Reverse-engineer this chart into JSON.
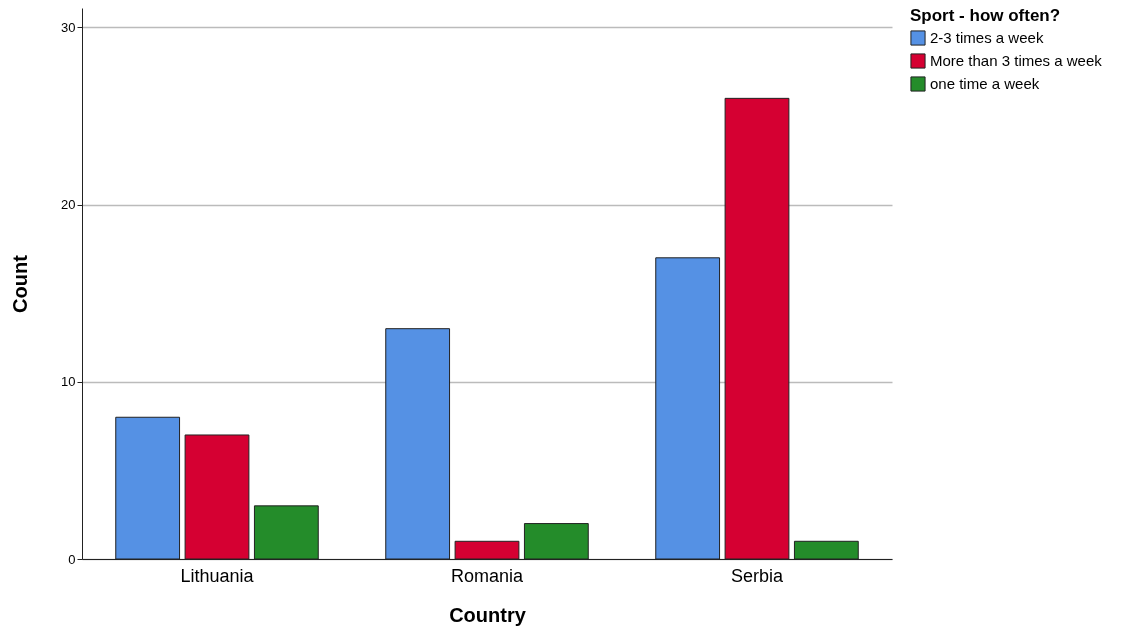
{
  "chart_data": {
    "type": "bar",
    "xlabel": "Country",
    "ylabel": "Count",
    "legend_title": "Sport - how often?",
    "categories": [
      "Lithuania",
      "Romania",
      "Serbia"
    ],
    "series": [
      {
        "name": "2-3 times a week",
        "color": "#5591e4",
        "values": [
          8,
          13,
          17
        ]
      },
      {
        "name": "More than 3 times a week",
        "color": "#d50032",
        "values": [
          7,
          1,
          26
        ]
      },
      {
        "name": "one time a week",
        "color": "#248c2a",
        "values": [
          3,
          2,
          1
        ]
      }
    ],
    "ylim": [
      0,
      31.1
    ],
    "yticks": [
      0,
      10,
      20,
      30
    ],
    "grid": "y",
    "legend": "top right"
  }
}
